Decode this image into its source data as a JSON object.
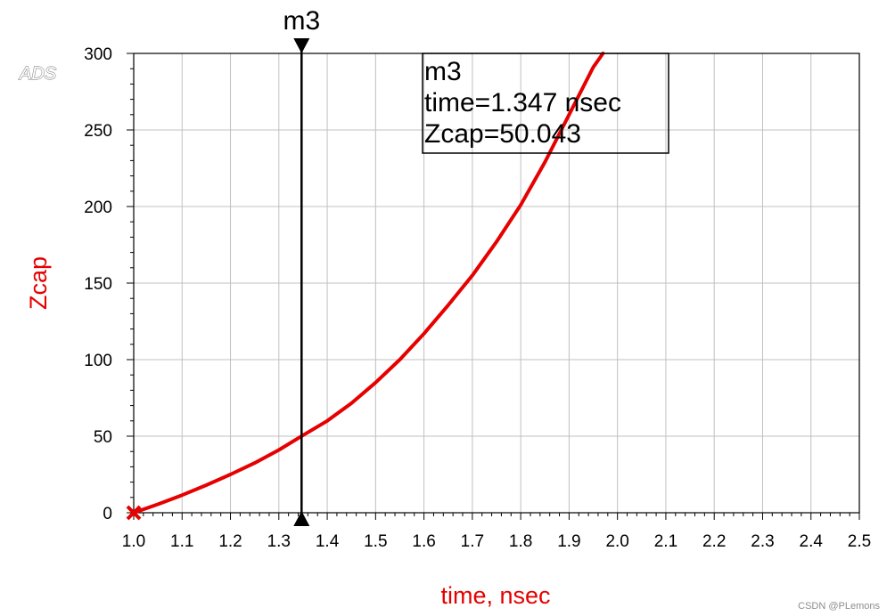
{
  "app": {
    "logo": "ADS",
    "watermark": "CSDN @PLemons"
  },
  "colors": {
    "trace": "#e60000",
    "axis_title": "#e60000",
    "grid": "#c0c0c0",
    "marker": "#000000"
  },
  "chart_data": {
    "type": "line",
    "title": "",
    "xlabel": "time, nsec",
    "ylabel": "Zcap",
    "xlim": [
      1.0,
      2.5
    ],
    "ylim": [
      0,
      300
    ],
    "grid": true,
    "x_ticks": [
      "1.0",
      "1.1",
      "1.2",
      "1.3",
      "1.4",
      "1.5",
      "1.6",
      "1.7",
      "1.8",
      "1.9",
      "2.0",
      "2.1",
      "2.2",
      "2.3",
      "2.4",
      "2.5"
    ],
    "y_ticks": [
      "0",
      "50",
      "100",
      "150",
      "200",
      "250",
      "300"
    ],
    "series": [
      {
        "color": "#e60000",
        "x": [
          1.0,
          1.05,
          1.1,
          1.15,
          1.2,
          1.25,
          1.3,
          1.347,
          1.4,
          1.45,
          1.5,
          1.55,
          1.6,
          1.65,
          1.7,
          1.75,
          1.8,
          1.85,
          1.9,
          1.95,
          1.97
        ],
        "y": [
          0,
          5.5,
          11.5,
          18,
          25,
          32.5,
          41,
          50.043,
          60,
          71.5,
          85,
          100,
          117,
          135.5,
          155,
          177,
          201,
          229,
          260,
          291,
          300
        ]
      }
    ],
    "start_marker": {
      "x": 1.0,
      "y": 0
    },
    "marker": {
      "name": "m3",
      "x": 1.347,
      "y": 50.043,
      "readout": [
        "m3",
        "time=1.347 nsec",
        "Zcap=50.043"
      ]
    }
  }
}
